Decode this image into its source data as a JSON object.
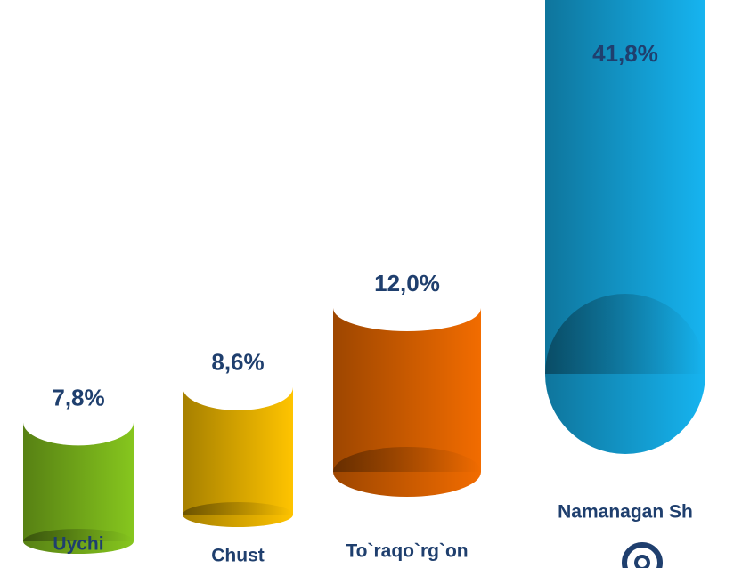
{
  "chart_data": {
    "type": "bar",
    "categories": [
      "Uychi",
      "Chust",
      "To`raqo`rg`on",
      "Namanagan Sh"
    ],
    "values": [
      7.8,
      8.6,
      12.0,
      41.8
    ],
    "value_labels": [
      "7,8%",
      "8,6%",
      "12,0%",
      "41,8%"
    ],
    "colors": [
      "#86c61e",
      "#ffc400",
      "#f26c00",
      "#16b4f0"
    ]
  }
}
